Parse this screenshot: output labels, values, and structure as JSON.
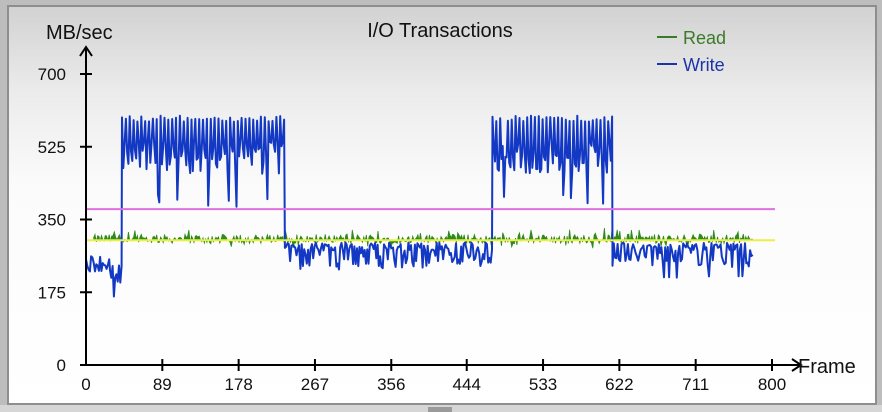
{
  "window": {
    "title": "I/O Transactions"
  },
  "colors": {
    "read": "#2e8b1e",
    "write": "#1238c4",
    "read_legend_text": "#3a7a2a",
    "write_legend_text": "#1c34a8",
    "threshold_magenta": "#e070e0",
    "threshold_yellow": "#eeee44",
    "axis": "#000000"
  },
  "legend": {
    "items": [
      {
        "label": "Read",
        "color": "#2e8b1e"
      },
      {
        "label": "Write",
        "color": "#1238c4"
      }
    ]
  },
  "chart_data": {
    "type": "line",
    "title": "I/O Transactions",
    "xlabel": "Frame",
    "ylabel": "MB/sec",
    "xlim": [
      0,
      800
    ],
    "ylim": [
      0,
      700
    ],
    "x_ticks": [
      0,
      89,
      178,
      267,
      356,
      444,
      533,
      622,
      711,
      800
    ],
    "y_ticks": [
      0,
      175,
      350,
      525,
      700
    ],
    "grid": false,
    "legend_position": "top-right",
    "reference_lines": [
      {
        "name": "magenta-threshold",
        "y": 375,
        "color": "#e070e0"
      },
      {
        "name": "yellow-threshold",
        "y": 300,
        "color": "#eeee44"
      }
    ],
    "series": [
      {
        "name": "Read",
        "description": "Noisy signal centered around 300 MB/sec, starting at frame ~9 and ending near frame ~778",
        "x": [
          9,
          40,
          100,
          150,
          232,
          300,
          356,
          444,
          474,
          533,
          614,
          680,
          740,
          778
        ],
        "values": [
          300,
          305,
          302,
          306,
          300,
          310,
          305,
          308,
          300,
          304,
          300,
          310,
          305,
          300
        ],
        "range_approx": [
          280,
          330
        ]
      },
      {
        "name": "Write",
        "description": "Alternating low/high phases with heavy oscillation",
        "phases": [
          {
            "start": 0,
            "end": 28,
            "low": 225,
            "high": 265
          },
          {
            "start": 28,
            "end": 42,
            "low": 145,
            "high": 245
          },
          {
            "start": 42,
            "end": 232,
            "low": 380,
            "high": 600
          },
          {
            "start": 232,
            "end": 474,
            "low": 225,
            "high": 300
          },
          {
            "start": 474,
            "end": 614,
            "low": 380,
            "high": 600
          },
          {
            "start": 614,
            "end": 778,
            "low": 205,
            "high": 300
          }
        ],
        "x": [
          0,
          28,
          42,
          89,
          178,
          232,
          267,
          356,
          444,
          474,
          533,
          614,
          622,
          711,
          778
        ],
        "values": [
          250,
          240,
          560,
          540,
          550,
          300,
          270,
          265,
          270,
          300,
          545,
          300,
          265,
          260,
          250
        ]
      }
    ]
  }
}
